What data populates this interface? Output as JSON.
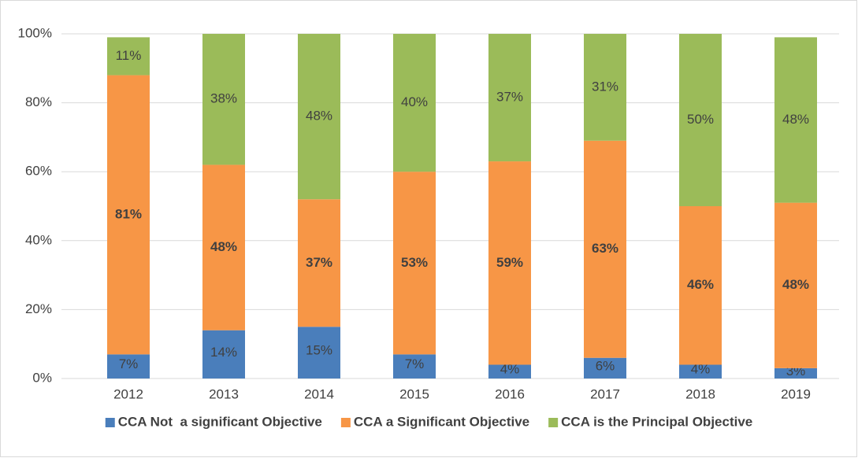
{
  "chart_data": {
    "type": "stacked_bar",
    "categories": [
      "2012",
      "2013",
      "2014",
      "2015",
      "2016",
      "2017",
      "2018",
      "2019"
    ],
    "series": [
      {
        "name": "CCA Not  a significant Objective",
        "color": "#4a7ebb",
        "values": [
          7,
          14,
          15,
          7,
          4,
          6,
          4,
          3
        ],
        "value_labels": [
          "7%",
          "14%",
          "15%",
          "7%",
          "4%",
          "6%",
          "4%",
          "3%"
        ]
      },
      {
        "name": "CCA a Significant Objective",
        "color": "#f79646",
        "values": [
          81,
          48,
          37,
          53,
          59,
          63,
          46,
          48
        ],
        "value_labels": [
          "81%",
          "48%",
          "37%",
          "53%",
          "59%",
          "63%",
          "46%",
          "48%"
        ]
      },
      {
        "name": "CCA is the Principal Objective",
        "color": "#9bbb59",
        "values": [
          11,
          38,
          48,
          40,
          37,
          31,
          50,
          48
        ],
        "value_labels": [
          "11%",
          "38%",
          "48%",
          "40%",
          "37%",
          "31%",
          "50%",
          "48%"
        ]
      }
    ],
    "ylim": [
      0,
      100
    ],
    "yticks": [
      {
        "value": 0,
        "label": "0%"
      },
      {
        "value": 20,
        "label": "20%"
      },
      {
        "value": 40,
        "label": "40%"
      },
      {
        "value": 60,
        "label": "60%"
      },
      {
        "value": 80,
        "label": "80%"
      },
      {
        "value": 100,
        "label": "100%"
      }
    ],
    "grid": true,
    "legend": "bottom"
  }
}
